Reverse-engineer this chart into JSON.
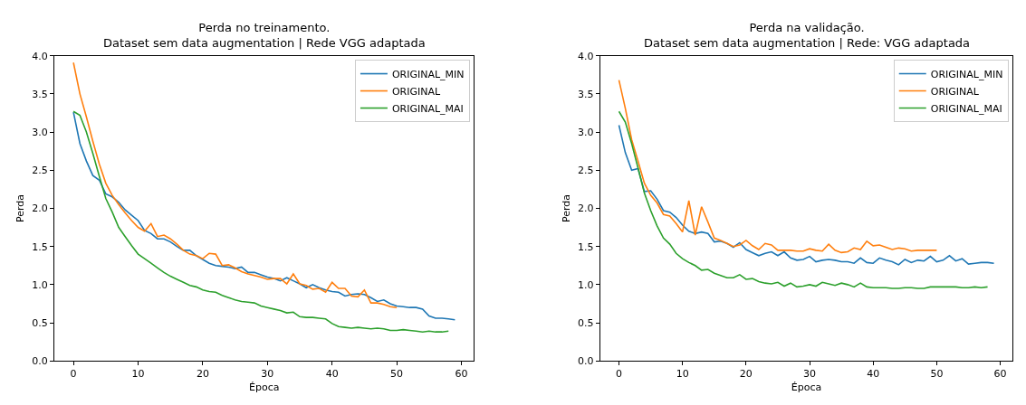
{
  "chart_data": [
    {
      "type": "line",
      "title": "Perda no treinamento.\nDataset sem data augmentation | Rede VGG adaptada",
      "xlabel": "Época",
      "ylabel": "Perda",
      "xlim": [
        -2.95,
        61.95
      ],
      "ylim": [
        0,
        4.0
      ],
      "xticks": [
        0,
        10,
        20,
        30,
        40,
        50,
        60
      ],
      "yticks": [
        {
          "value": 0,
          "label": "0.0"
        },
        0.5,
        {
          "value": 1,
          "label": "1.0"
        },
        1.5,
        {
          "value": 2,
          "label": "2.0"
        },
        2.5,
        {
          "value": 3,
          "label": "3.0"
        },
        3.5,
        {
          "value": 4,
          "label": "4.0"
        }
      ],
      "legend": "top right",
      "marker": "none",
      "line_style": "solid",
      "x": [
        0,
        1,
        2,
        3,
        4,
        5,
        6,
        7,
        8,
        9,
        10,
        11,
        12,
        13,
        14,
        15,
        16,
        17,
        18,
        19,
        20,
        21,
        22,
        23,
        24,
        25,
        26,
        27,
        28,
        29,
        30,
        31,
        32,
        33,
        34,
        35,
        36,
        37,
        38,
        39,
        40,
        41,
        42,
        43,
        44,
        45,
        46,
        47,
        48,
        49,
        50,
        51,
        52,
        53,
        54,
        55,
        56,
        57,
        58,
        59
      ],
      "series": [
        {
          "name": "ORIGINAL_MIN",
          "color": "#1f77b4",
          "values": [
            3.26,
            2.85,
            2.62,
            2.43,
            2.37,
            2.19,
            2.15,
            2.08,
            1.98,
            1.91,
            1.84,
            1.71,
            1.67,
            1.6,
            1.6,
            1.56,
            1.5,
            1.45,
            1.45,
            1.38,
            1.33,
            1.28,
            1.25,
            1.24,
            1.23,
            1.21,
            1.23,
            1.16,
            1.16,
            1.13,
            1.1,
            1.08,
            1.05,
            1.09,
            1.05,
            1.01,
            0.96,
            1.0,
            0.96,
            0.93,
            0.91,
            0.9,
            0.85,
            0.87,
            0.88,
            0.87,
            0.83,
            0.78,
            0.8,
            0.75,
            0.72,
            0.71,
            0.7,
            0.7,
            0.68,
            0.59,
            0.56,
            0.56,
            0.55,
            0.54
          ]
        },
        {
          "name": "ORIGINAL",
          "color": "#ff7f0e",
          "values": [
            3.91,
            3.5,
            3.2,
            2.88,
            2.58,
            2.33,
            2.17,
            2.05,
            1.94,
            1.84,
            1.75,
            1.7,
            1.8,
            1.63,
            1.65,
            1.6,
            1.53,
            1.45,
            1.4,
            1.38,
            1.34,
            1.41,
            1.4,
            1.25,
            1.26,
            1.22,
            1.17,
            1.14,
            1.12,
            1.1,
            1.07,
            1.08,
            1.08,
            1.01,
            1.14,
            1.01,
            0.99,
            0.94,
            0.95,
            0.9,
            1.03,
            0.95,
            0.95,
            0.85,
            0.84,
            0.93,
            0.76,
            0.76,
            0.74,
            0.71,
            0.7,
            null,
            null,
            null,
            null,
            null,
            null,
            null,
            null,
            null
          ]
        },
        {
          "name": "ORIGINAL_MAI",
          "color": "#2ca02c",
          "values": [
            3.27,
            3.22,
            3.0,
            2.72,
            2.42,
            2.13,
            1.95,
            1.75,
            1.63,
            1.51,
            1.4,
            1.34,
            1.28,
            1.22,
            1.16,
            1.11,
            1.07,
            1.03,
            0.99,
            0.97,
            0.93,
            0.91,
            0.9,
            0.86,
            0.83,
            0.8,
            0.78,
            0.77,
            0.76,
            0.72,
            0.7,
            0.68,
            0.66,
            0.63,
            0.64,
            0.58,
            0.57,
            0.57,
            0.56,
            0.55,
            0.49,
            0.45,
            0.44,
            0.43,
            0.44,
            0.43,
            0.42,
            0.43,
            0.42,
            0.4,
            0.4,
            0.41,
            0.4,
            0.39,
            0.38,
            0.39,
            0.38,
            0.38,
            0.39,
            null
          ]
        }
      ]
    },
    {
      "type": "line",
      "title": "Perda na validação.\nDataset sem data augmentation | Rede: VGG adaptada",
      "xlabel": "Época",
      "ylabel": "Perda",
      "xlim": [
        -2.95,
        61.95
      ],
      "ylim": [
        0,
        4.0
      ],
      "xticks": [
        0,
        10,
        20,
        30,
        40,
        50,
        60
      ],
      "yticks": [
        {
          "value": 0,
          "label": "0.0"
        },
        0.5,
        {
          "value": 1,
          "label": "1.0"
        },
        1.5,
        {
          "value": 2,
          "label": "2.0"
        },
        2.5,
        {
          "value": 3,
          "label": "3.0"
        },
        3.5,
        {
          "value": 4,
          "label": "4.0"
        }
      ],
      "legend": "top right",
      "marker": "none",
      "line_style": "solid",
      "x": [
        0,
        1,
        2,
        3,
        4,
        5,
        6,
        7,
        8,
        9,
        10,
        11,
        12,
        13,
        14,
        15,
        16,
        17,
        18,
        19,
        20,
        21,
        22,
        23,
        24,
        25,
        26,
        27,
        28,
        29,
        30,
        31,
        32,
        33,
        34,
        35,
        36,
        37,
        38,
        39,
        40,
        41,
        42,
        43,
        44,
        45,
        46,
        47,
        48,
        49,
        50,
        51,
        52,
        53,
        54,
        55,
        56,
        57,
        58,
        59
      ],
      "series": [
        {
          "name": "ORIGINAL_MIN",
          "color": "#1f77b4",
          "values": [
            3.09,
            2.73,
            2.5,
            2.52,
            2.22,
            2.23,
            2.12,
            1.97,
            1.95,
            1.88,
            1.78,
            1.7,
            1.67,
            1.69,
            1.67,
            1.56,
            1.57,
            1.54,
            1.49,
            1.55,
            1.46,
            1.42,
            1.38,
            1.41,
            1.43,
            1.38,
            1.43,
            1.35,
            1.32,
            1.33,
            1.37,
            1.3,
            1.32,
            1.33,
            1.32,
            1.3,
            1.3,
            1.28,
            1.35,
            1.29,
            1.28,
            1.35,
            1.32,
            1.3,
            1.26,
            1.33,
            1.29,
            1.32,
            1.31,
            1.37,
            1.3,
            1.32,
            1.38,
            1.31,
            1.34,
            1.27,
            1.28,
            1.29,
            1.29,
            1.28
          ]
        },
        {
          "name": "ORIGINAL",
          "color": "#ff7f0e",
          "values": [
            3.68,
            3.31,
            2.9,
            2.62,
            2.33,
            2.17,
            2.07,
            1.92,
            1.9,
            1.8,
            1.69,
            2.1,
            1.65,
            2.02,
            1.82,
            1.61,
            1.58,
            1.54,
            1.5,
            1.52,
            1.58,
            1.51,
            1.46,
            1.54,
            1.52,
            1.45,
            1.45,
            1.45,
            1.44,
            1.44,
            1.47,
            1.45,
            1.44,
            1.53,
            1.45,
            1.42,
            1.43,
            1.48,
            1.46,
            1.57,
            1.51,
            1.52,
            1.49,
            1.46,
            1.48,
            1.47,
            1.44,
            1.45,
            1.45,
            1.45,
            1.45,
            null,
            null,
            null,
            null,
            null,
            null,
            null,
            null,
            null
          ]
        },
        {
          "name": "ORIGINAL_MAI",
          "color": "#2ca02c",
          "values": [
            3.27,
            3.13,
            2.85,
            2.53,
            2.2,
            1.97,
            1.77,
            1.61,
            1.53,
            1.41,
            1.34,
            1.29,
            1.25,
            1.19,
            1.2,
            1.15,
            1.12,
            1.09,
            1.09,
            1.13,
            1.07,
            1.08,
            1.04,
            1.02,
            1.01,
            1.03,
            0.98,
            1.02,
            0.97,
            0.98,
            1.0,
            0.98,
            1.03,
            1.01,
            0.99,
            1.02,
            1.0,
            0.97,
            1.02,
            0.97,
            0.96,
            0.96,
            0.96,
            0.95,
            0.95,
            0.96,
            0.96,
            0.95,
            0.95,
            0.97,
            0.97,
            0.97,
            0.97,
            0.97,
            0.96,
            0.96,
            0.97,
            0.96,
            0.97,
            null
          ]
        }
      ]
    }
  ]
}
